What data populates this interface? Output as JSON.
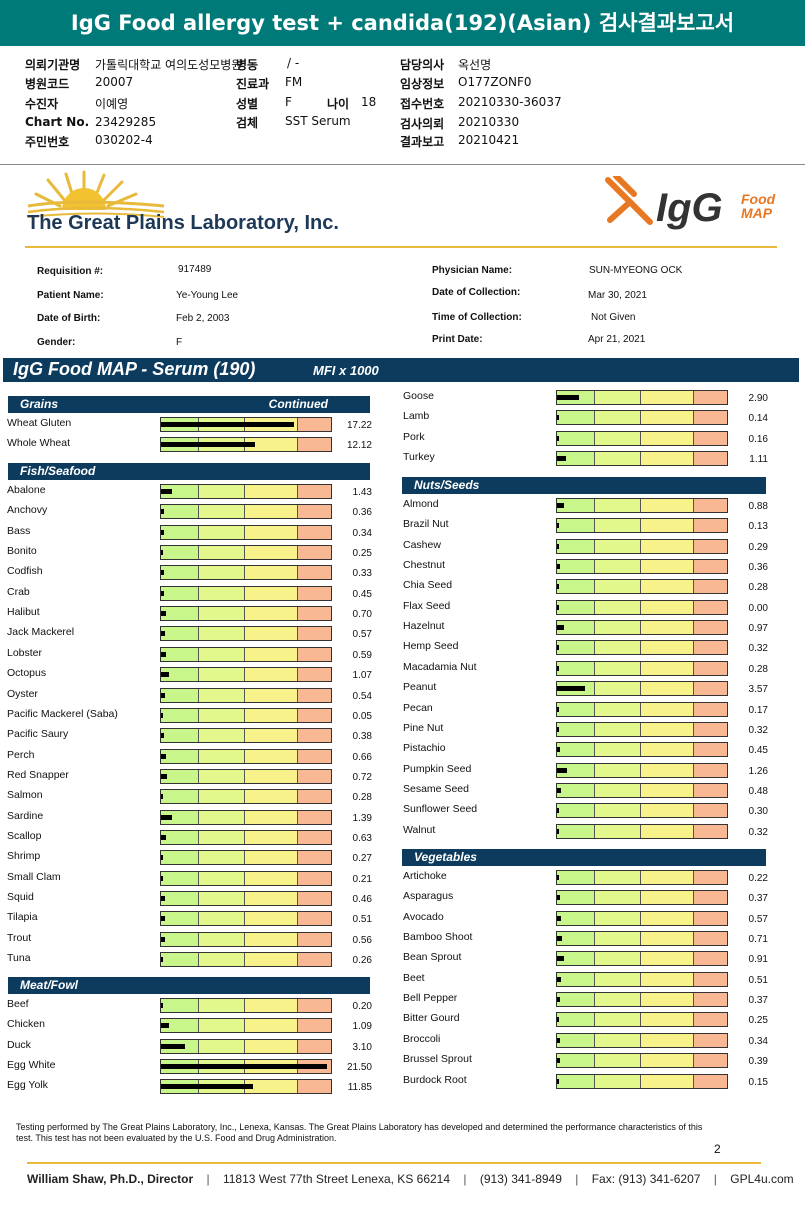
{
  "report_title": "IgG Food allergy test + candida(192)(Asian) 검사결과보고서",
  "korean_header": {
    "left": [
      {
        "label": "의뢰기관명",
        "value": "가톨릭대학교 여의도성모병원"
      },
      {
        "label": "병원코드",
        "value": "20007"
      },
      {
        "label": "수진자",
        "value": "이예영"
      },
      {
        "label": "Chart No.",
        "value": "23429285"
      },
      {
        "label": "주민번호",
        "value": "030202-4"
      }
    ],
    "mid": [
      {
        "label": "병동",
        "value": "/ -"
      },
      {
        "label": "진료과",
        "value": "FM"
      },
      {
        "label": "성별",
        "value": "F"
      },
      {
        "label": "검체",
        "value": "SST Serum"
      }
    ],
    "age_label": "나이",
    "age_value": "18",
    "right": [
      {
        "label": "담당의사",
        "value": "옥선명"
      },
      {
        "label": "임상정보",
        "value": "O177ZONF0"
      },
      {
        "label": "접수번호",
        "value": "20210330-36037"
      },
      {
        "label": "검사의뢰",
        "value": "20210330"
      },
      {
        "label": "결과보고",
        "value": "20210421"
      }
    ]
  },
  "lab": {
    "name": "The Great Plains Laboratory, Inc.",
    "logo_igg": "IgG",
    "logo_food": "Food",
    "logo_map": "MAP"
  },
  "patient": {
    "left": [
      {
        "label": "Requisition #:",
        "value": "917489"
      },
      {
        "label": "Patient Name:",
        "value": "Ye-Young Lee"
      },
      {
        "label": "Date of Birth:",
        "value": "Feb 2, 2003"
      },
      {
        "label": "Gender:",
        "value": "F"
      }
    ],
    "right": [
      {
        "label": "Physician Name:",
        "value": "SUN-MYEONG OCK"
      },
      {
        "label": "Date of Collection:",
        "value": "Mar 30, 2021"
      },
      {
        "label": "Time of Collection:",
        "value": "Not Given"
      },
      {
        "label": "Print Date:",
        "value": "Apr 21, 2021"
      }
    ]
  },
  "panel_title": "IgG Food MAP - Serum (190)",
  "units": "MFI x 1000",
  "scale_max": 22,
  "continued_label": "Continued",
  "sections": [
    {
      "title": "Grains",
      "continued": true,
      "column": "left",
      "items": [
        {
          "name": "Wheat Gluten",
          "value": "17.22"
        },
        {
          "name": "Whole Wheat",
          "value": "12.12"
        }
      ]
    },
    {
      "title": "Fish/Seafood",
      "column": "left",
      "items": [
        {
          "name": "Abalone",
          "value": "1.43"
        },
        {
          "name": "Anchovy",
          "value": "0.36"
        },
        {
          "name": "Bass",
          "value": "0.34"
        },
        {
          "name": "Bonito",
          "value": "0.25"
        },
        {
          "name": "Codfish",
          "value": "0.33"
        },
        {
          "name": "Crab",
          "value": "0.45"
        },
        {
          "name": "Halibut",
          "value": "0.70"
        },
        {
          "name": "Jack Mackerel",
          "value": "0.57"
        },
        {
          "name": "Lobster",
          "value": "0.59"
        },
        {
          "name": "Octopus",
          "value": "1.07"
        },
        {
          "name": "Oyster",
          "value": "0.54"
        },
        {
          "name": "Pacific Mackerel (Saba)",
          "value": "0.05"
        },
        {
          "name": "Pacific Saury",
          "value": "0.38"
        },
        {
          "name": "Perch",
          "value": "0.66"
        },
        {
          "name": "Red Snapper",
          "value": "0.72"
        },
        {
          "name": "Salmon",
          "value": "0.28"
        },
        {
          "name": "Sardine",
          "value": "1.39"
        },
        {
          "name": "Scallop",
          "value": "0.63"
        },
        {
          "name": "Shrimp",
          "value": "0.27"
        },
        {
          "name": "Small Clam",
          "value": "0.21"
        },
        {
          "name": "Squid",
          "value": "0.46"
        },
        {
          "name": "Tilapia",
          "value": "0.51"
        },
        {
          "name": "Trout",
          "value": "0.56"
        },
        {
          "name": "Tuna",
          "value": "0.26"
        }
      ]
    },
    {
      "title": "Meat/Fowl",
      "column": "left",
      "items": [
        {
          "name": "Beef",
          "value": "0.20"
        },
        {
          "name": "Chicken",
          "value": "1.09"
        },
        {
          "name": "Duck",
          "value": "3.10"
        },
        {
          "name": "Egg White",
          "value": "21.50"
        },
        {
          "name": "Egg Yolk",
          "value": "11.85"
        }
      ]
    },
    {
      "title": "",
      "column": "right",
      "items": [
        {
          "name": "Goose",
          "value": "2.90"
        },
        {
          "name": "Lamb",
          "value": "0.14"
        },
        {
          "name": "Pork",
          "value": "0.16"
        },
        {
          "name": "Turkey",
          "value": "1.11"
        }
      ]
    },
    {
      "title": "Nuts/Seeds",
      "column": "right",
      "items": [
        {
          "name": "Almond",
          "value": "0.88"
        },
        {
          "name": "Brazil Nut",
          "value": "0.13"
        },
        {
          "name": "Cashew",
          "value": "0.29"
        },
        {
          "name": "Chestnut",
          "value": "0.36"
        },
        {
          "name": "Chia Seed",
          "value": "0.28"
        },
        {
          "name": "Flax Seed",
          "value": "0.00"
        },
        {
          "name": "Hazelnut",
          "value": "0.97"
        },
        {
          "name": "Hemp Seed",
          "value": "0.32"
        },
        {
          "name": "Macadamia Nut",
          "value": "0.28"
        },
        {
          "name": "Peanut",
          "value": "3.57"
        },
        {
          "name": "Pecan",
          "value": "0.17"
        },
        {
          "name": "Pine Nut",
          "value": "0.32"
        },
        {
          "name": "Pistachio",
          "value": "0.45"
        },
        {
          "name": "Pumpkin Seed",
          "value": "1.26"
        },
        {
          "name": "Sesame Seed",
          "value": "0.48"
        },
        {
          "name": "Sunflower Seed",
          "value": "0.30"
        },
        {
          "name": "Walnut",
          "value": "0.32"
        }
      ]
    },
    {
      "title": "Vegetables",
      "column": "right",
      "items": [
        {
          "name": "Artichoke",
          "value": "0.22"
        },
        {
          "name": "Asparagus",
          "value": "0.37"
        },
        {
          "name": "Avocado",
          "value": "0.57"
        },
        {
          "name": "Bamboo Shoot",
          "value": "0.71"
        },
        {
          "name": "Bean Sprout",
          "value": "0.91"
        },
        {
          "name": "Beet",
          "value": "0.51"
        },
        {
          "name": "Bell Pepper",
          "value": "0.37"
        },
        {
          "name": "Bitter Gourd",
          "value": "0.25"
        },
        {
          "name": "Broccoli",
          "value": "0.34"
        },
        {
          "name": "Brussel Sprout",
          "value": "0.39"
        },
        {
          "name": "Burdock Root",
          "value": "0.15"
        }
      ]
    }
  ],
  "footnote": "Testing performed by The Great Plains Laboratory, Inc., Lenexa, Kansas.  The Great Plains Laboratory has developed and determined the performance characteristics of this test.  This test has not been evaluated by the U.S. Food and Drug Administration.",
  "page_number": "2",
  "footer": {
    "director": "William Shaw, Ph.D., Director",
    "address": "11813 West 77th Street Lenexa, KS 66214",
    "phone": "(913) 341-8949",
    "fax": "Fax: (913) 341-6207",
    "site": "GPL4u.com"
  },
  "colors": {
    "header_teal": "#007a78",
    "navy": "#0c3b5e",
    "gold": "#e8ba3c",
    "orange": "#e87722"
  }
}
